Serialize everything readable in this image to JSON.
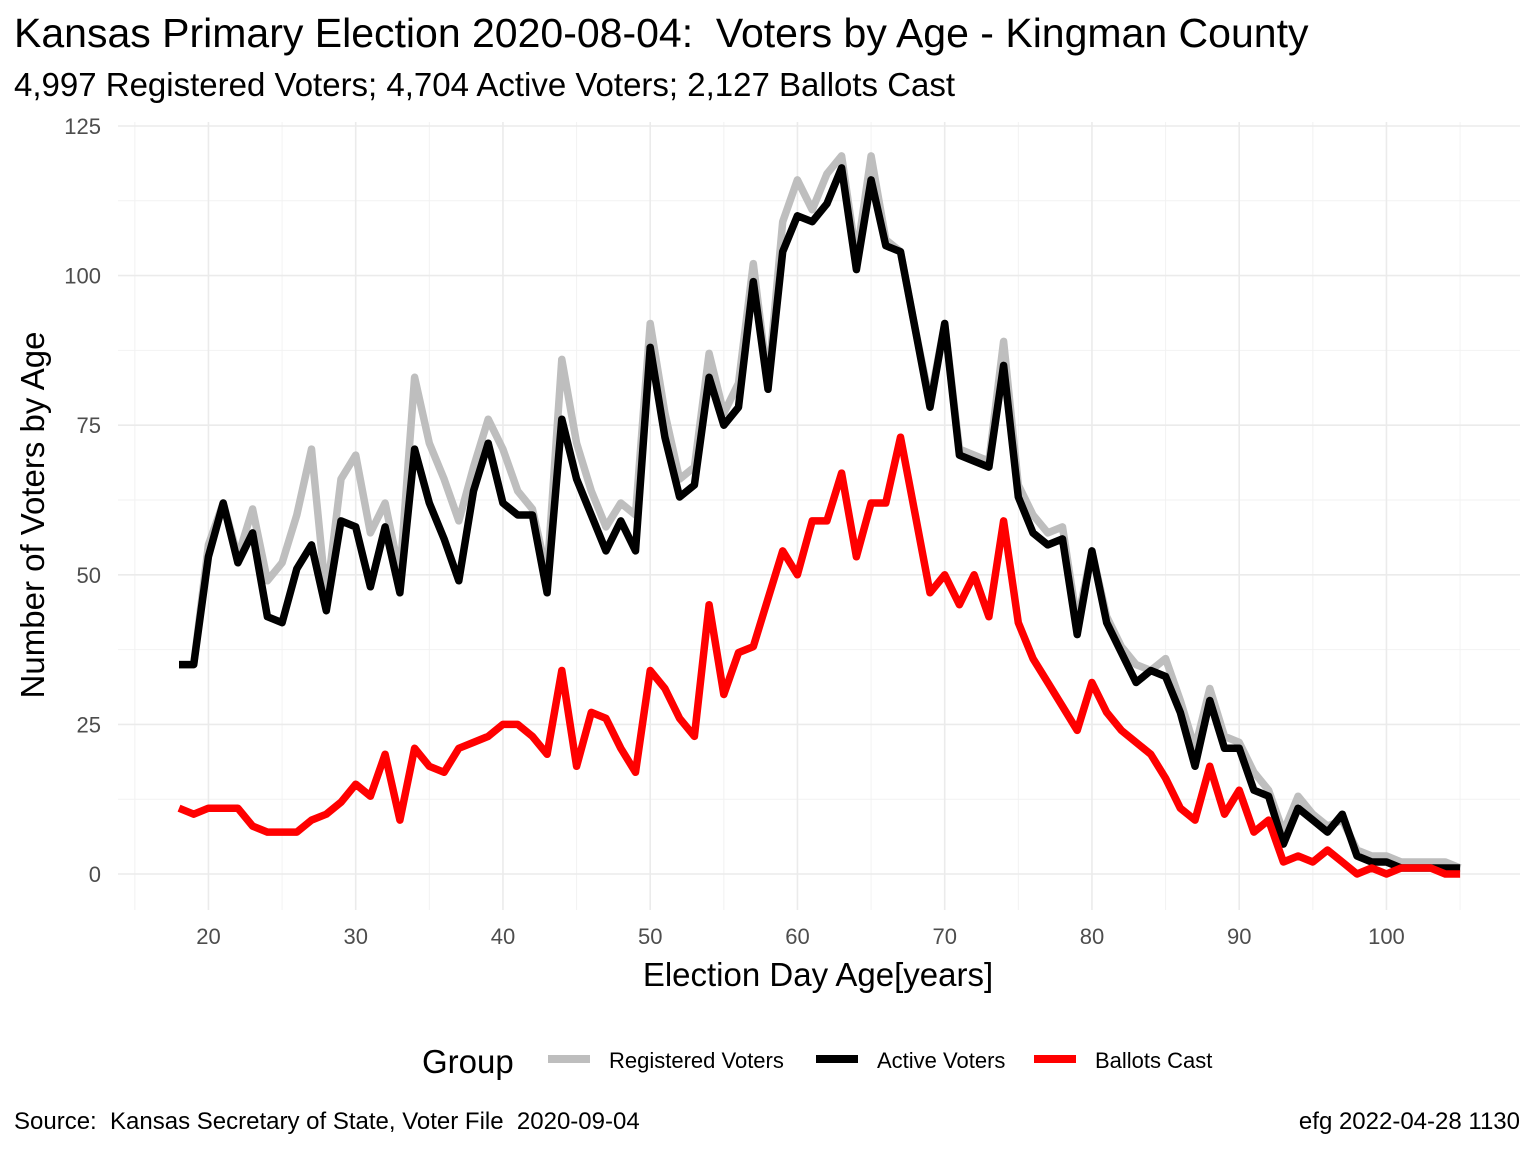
{
  "chart_data": {
    "type": "line",
    "title": "Kansas Primary Election 2020-08-04:  Voters by Age - Kingman County",
    "subtitle": "4,997 Registered Voters; 4,704 Active Voters; 2,127 Ballots Cast",
    "xlabel": "Election Day Age[years]",
    "ylabel": "Number of Voters by Age",
    "xlim": [
      18,
      105
    ],
    "ylim": [
      0,
      125
    ],
    "x_ticks": [
      "20",
      "30",
      "40",
      "50",
      "60",
      "70",
      "80",
      "90",
      "100"
    ],
    "y_ticks": [
      "0",
      "25",
      "50",
      "75",
      "100",
      "125"
    ],
    "grid": true,
    "legend": {
      "title": "Group",
      "position": "bottom"
    },
    "x": [
      18,
      19,
      20,
      21,
      22,
      23,
      24,
      25,
      26,
      27,
      28,
      29,
      30,
      31,
      32,
      33,
      34,
      35,
      36,
      37,
      38,
      39,
      40,
      41,
      42,
      43,
      44,
      45,
      46,
      47,
      48,
      49,
      50,
      51,
      52,
      53,
      54,
      55,
      56,
      57,
      58,
      59,
      60,
      61,
      62,
      63,
      64,
      65,
      66,
      67,
      68,
      69,
      70,
      71,
      72,
      73,
      74,
      75,
      76,
      77,
      78,
      79,
      80,
      81,
      82,
      83,
      84,
      85,
      86,
      87,
      88,
      89,
      90,
      91,
      92,
      93,
      94,
      95,
      96,
      97,
      98,
      99,
      100,
      101,
      102,
      103,
      104,
      105
    ],
    "series": [
      {
        "name": "Registered Voters",
        "color": "#bebebe",
        "values": [
          35,
          35,
          55,
          62,
          53,
          61,
          49,
          52,
          60,
          71,
          46,
          66,
          70,
          57,
          62,
          50,
          83,
          72,
          66,
          59,
          68,
          76,
          71,
          64,
          61,
          50,
          86,
          72,
          64,
          58,
          62,
          60,
          92,
          77,
          66,
          68,
          87,
          77,
          82,
          102,
          82,
          109,
          116,
          111,
          117,
          120,
          103,
          120,
          106,
          104,
          91,
          79,
          92,
          71,
          70,
          69,
          89,
          65,
          60,
          57,
          58,
          42,
          54,
          43,
          38,
          35,
          34,
          36,
          29,
          21,
          31,
          23,
          22,
          17,
          14,
          7,
          13,
          10,
          8,
          9,
          4,
          3,
          3,
          2,
          2,
          2,
          2,
          1
        ],
        "note": ""
      },
      {
        "name": "Active Voters",
        "color": "#000000",
        "values": [
          35,
          35,
          53,
          62,
          52,
          57,
          43,
          42,
          51,
          55,
          44,
          59,
          58,
          48,
          58,
          47,
          71,
          62,
          56,
          49,
          64,
          72,
          62,
          60,
          60,
          47,
          76,
          66,
          60,
          54,
          59,
          54,
          88,
          73,
          63,
          65,
          83,
          75,
          78,
          99,
          81,
          104,
          110,
          109,
          112,
          118,
          101,
          116,
          105,
          104,
          91,
          78,
          92,
          70,
          69,
          68,
          85,
          63,
          57,
          55,
          56,
          40,
          54,
          42,
          37,
          32,
          34,
          33,
          27,
          18,
          29,
          21,
          21,
          14,
          13,
          5,
          11,
          9,
          7,
          10,
          3,
          2,
          2,
          1,
          1,
          1,
          1,
          1
        ]
      },
      {
        "name": "Ballots Cast",
        "color": "#ff0000",
        "values": [
          11,
          10,
          11,
          11,
          11,
          8,
          7,
          7,
          7,
          9,
          10,
          12,
          15,
          13,
          20,
          9,
          21,
          18,
          17,
          21,
          22,
          23,
          25,
          25,
          23,
          20,
          34,
          18,
          27,
          26,
          21,
          17,
          34,
          31,
          26,
          23,
          45,
          30,
          37,
          38,
          46,
          54,
          50,
          59,
          59,
          67,
          53,
          62,
          62,
          73,
          60,
          47,
          50,
          45,
          50,
          43,
          59,
          42,
          36,
          32,
          28,
          24,
          32,
          27,
          24,
          22,
          20,
          16,
          11,
          9,
          18,
          10,
          14,
          7,
          9,
          2,
          3,
          2,
          4,
          2,
          0,
          1,
          0,
          1,
          1,
          1,
          0,
          0
        ]
      }
    ]
  },
  "caption": {
    "left": "Source:  Kansas Secretary of State, Voter File  2020-09-04",
    "right": "efg 2022-04-28 1130"
  }
}
